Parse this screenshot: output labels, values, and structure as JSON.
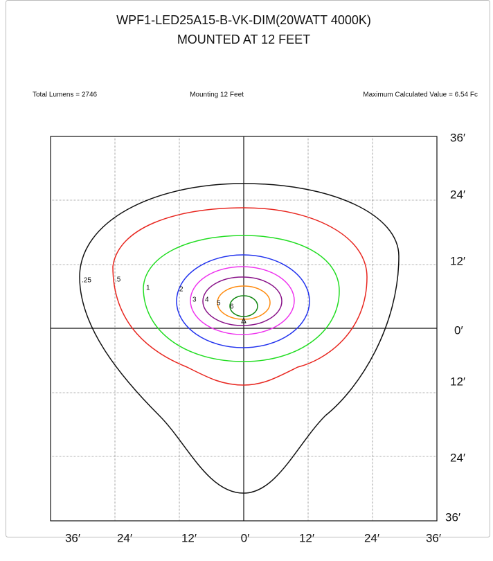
{
  "header": {
    "title": [
      "WPF1-LED25A15-B-VK-DIM(20WATT 4000K)",
      "MOUNTED AT 12 FEET"
    ]
  },
  "info": [
    "Total Lumens = 2746",
    "Mounting 12 Feet",
    "Maximum Calculated Value = 6.54 Fc"
  ],
  "right_axis": [
    "36′",
    "24′",
    "12′",
    "0′",
    "12′",
    "24′",
    "36′"
  ],
  "bottom_axis": [
    "36′",
    "24′",
    "12′",
    "0′",
    "12′",
    "24′",
    "36′"
  ],
  "contour_labels": [
    ".25",
    ".5",
    "1",
    "2",
    "3",
    "4",
    "5",
    "6"
  ]
}
